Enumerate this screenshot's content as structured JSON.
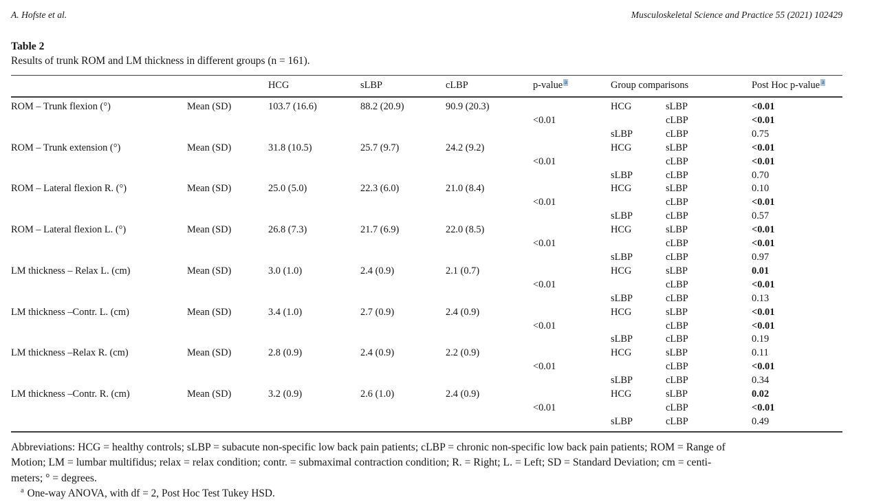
{
  "page": {
    "running_author": "A. Hofste et al.",
    "journal_ref": "Musculoskeletal Science and Practice 55 (2021) 102429"
  },
  "table": {
    "label": "Table 2",
    "caption": "Results of trunk ROM and LM thickness in different groups (n = 161).",
    "columns": {
      "hcg": "HCG",
      "slbp": "sLBP",
      "clbp": "cLBP",
      "p_value": "p-value",
      "p_value_sup": "a",
      "group_comparisons": "Group comparisons",
      "post_hoc": "Post Hoc p-value",
      "post_hoc_sup": "a"
    },
    "rows": [
      {
        "label": "ROM – Trunk flexion (°)",
        "stat": "Mean (SD)",
        "hcg": "103.7 (16.6)",
        "slbp": "88.2 (20.9)",
        "clbp": "90.9 (20.3)",
        "p_value": "<0.01",
        "comparisons": [
          {
            "g1": "HCG",
            "g2": "sLBP",
            "p": "<0.01",
            "bold": true
          },
          {
            "g1": "",
            "g2": "cLBP",
            "p": "<0.01",
            "bold": true
          },
          {
            "g1": "sLBP",
            "g2": "cLBP",
            "p": "0.75",
            "bold": false
          }
        ]
      },
      {
        "label": "ROM – Trunk extension (°)",
        "stat": "Mean (SD)",
        "hcg": "31.8 (10.5)",
        "slbp": "25.7 (9.7)",
        "clbp": "24.2 (9.2)",
        "p_value": "<0.01",
        "comparisons": [
          {
            "g1": "HCG",
            "g2": "sLBP",
            "p": "<0.01",
            "bold": true
          },
          {
            "g1": "",
            "g2": "cLBP",
            "p": "<0.01",
            "bold": true
          },
          {
            "g1": "sLBP",
            "g2": "cLBP",
            "p": "0.70",
            "bold": false
          }
        ]
      },
      {
        "label": "ROM – Lateral flexion R. (°)",
        "stat": "Mean (SD)",
        "hcg": "25.0 (5.0)",
        "slbp": "22.3 (6.0)",
        "clbp": "21.0 (8.4)",
        "p_value": "<0.01",
        "comparisons": [
          {
            "g1": "HCG",
            "g2": "sLBP",
            "p": "0.10",
            "bold": false
          },
          {
            "g1": "",
            "g2": "cLBP",
            "p": "<0.01",
            "bold": true
          },
          {
            "g1": "sLBP",
            "g2": "cLBP",
            "p": "0.57",
            "bold": false
          }
        ]
      },
      {
        "label": "ROM – Lateral flexion L. (°)",
        "stat": "Mean (SD)",
        "hcg": "26.8 (7.3)",
        "slbp": "21.7 (6.9)",
        "clbp": "22.0 (8.5)",
        "p_value": "<0.01",
        "comparisons": [
          {
            "g1": "HCG",
            "g2": "sLBP",
            "p": "<0.01",
            "bold": true
          },
          {
            "g1": "",
            "g2": "cLBP",
            "p": "<0.01",
            "bold": true
          },
          {
            "g1": "sLBP",
            "g2": "cLBP",
            "p": "0.97",
            "bold": false
          }
        ]
      },
      {
        "label": "LM thickness – Relax L. (cm)",
        "stat": "Mean (SD)",
        "hcg": "3.0 (1.0)",
        "slbp": "2.4 (0.9)",
        "clbp": "2.1 (0.7)",
        "p_value": "<0.01",
        "comparisons": [
          {
            "g1": "HCG",
            "g2": "sLBP",
            "p": "0.01",
            "bold": true
          },
          {
            "g1": "",
            "g2": "cLBP",
            "p": "<0.01",
            "bold": true
          },
          {
            "g1": "sLBP",
            "g2": "cLBP",
            "p": "0.13",
            "bold": false
          }
        ]
      },
      {
        "label": "LM thickness –Contr. L. (cm)",
        "stat": "Mean (SD)",
        "hcg": "3.4 (1.0)",
        "slbp": "2.7 (0.9)",
        "clbp": "2.4 (0.9)",
        "p_value": "<0.01",
        "comparisons": [
          {
            "g1": "HCG",
            "g2": "sLBP",
            "p": "<0.01",
            "bold": true
          },
          {
            "g1": "",
            "g2": "cLBP",
            "p": "<0.01",
            "bold": true
          },
          {
            "g1": "sLBP",
            "g2": "cLBP",
            "p": "0.19",
            "bold": false
          }
        ]
      },
      {
        "label": "LM thickness –Relax R. (cm)",
        "stat": "Mean (SD)",
        "hcg": "2.8 (0.9)",
        "slbp": "2.4 (0.9)",
        "clbp": "2.2 (0.9)",
        "p_value": "<0.01",
        "comparisons": [
          {
            "g1": "HCG",
            "g2": "sLBP",
            "p": "0.11",
            "bold": false
          },
          {
            "g1": "",
            "g2": "cLBP",
            "p": "<0.01",
            "bold": true
          },
          {
            "g1": "sLBP",
            "g2": "cLBP",
            "p": "0.34",
            "bold": false
          }
        ]
      },
      {
        "label": "LM thickness –Contr. R. (cm)",
        "stat": "Mean (SD)",
        "hcg": "3.2 (0.9)",
        "slbp": "2.6 (1.0)",
        "clbp": "2.4 (0.9)",
        "p_value": "<0.01",
        "comparisons": [
          {
            "g1": "HCG",
            "g2": "sLBP",
            "p": "0.02",
            "bold": true
          },
          {
            "g1": "",
            "g2": "cLBP",
            "p": "<0.01",
            "bold": true
          },
          {
            "g1": "sLBP",
            "g2": "cLBP",
            "p": "0.49",
            "bold": false
          }
        ]
      }
    ]
  },
  "footer": {
    "abbrev_lines": [
      "Abbreviations: HCG = healthy controls; sLBP = subacute non-specific low back pain patients; cLBP = chronic non-specific low back pain patients; ROM = Range of",
      "Motion; LM = lumbar multifidus; relax = relax condition; contr. = submaximal contraction condition; R. = Right; L. = Left; SD = Standard Deviation; cm = centi-",
      "meters; ° = degrees."
    ],
    "footnote_marker": "a",
    "footnote_text": "One-way ANOVA, with df = 2, Post Hoc Test Tukey HSD."
  },
  "colors": {
    "text": "#161616",
    "rule": "#3d3d3d",
    "footnote_link_bg": "#a6c8e0",
    "footnote_link_text": "#27587a"
  }
}
